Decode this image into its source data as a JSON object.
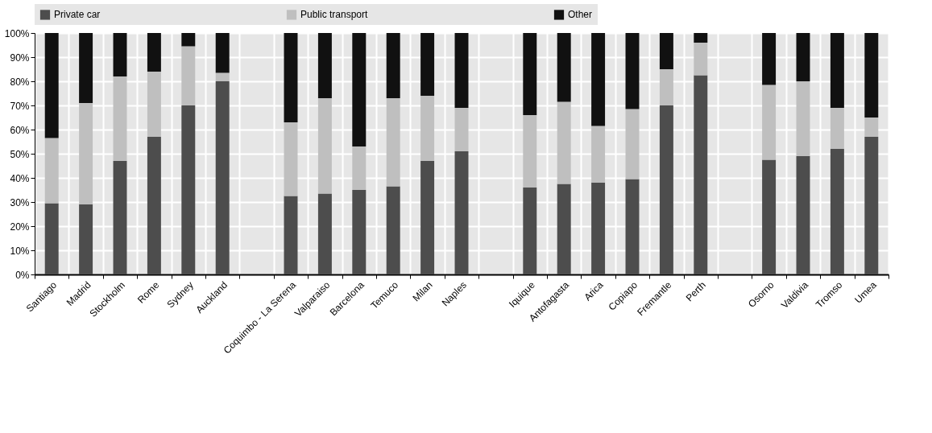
{
  "chart_data": {
    "type": "bar",
    "stacked": true,
    "categories": [
      "Santiago",
      "Madrid",
      "Stockholm",
      "Rome",
      "Sydney",
      "Auckland",
      null,
      "Coquimbo - La Serena",
      "Valparaiso",
      "Barcelona",
      "Temuco",
      "Milan",
      "Naples",
      null,
      "Iquique",
      "Antofagasta",
      "Arica",
      "Copiapo",
      "Fremantle",
      "Perth",
      null,
      "Osorno",
      "Valdivia",
      "Tromso",
      "Umea"
    ],
    "series": [
      {
        "name": "Private car",
        "color": "#4d4d4d",
        "values": [
          29.5,
          29,
          47,
          57,
          70,
          80,
          null,
          32.5,
          33.5,
          35,
          36.5,
          47,
          51,
          null,
          36,
          37.5,
          38,
          39.5,
          70,
          82.5,
          null,
          47.5,
          49,
          52,
          57
        ]
      },
      {
        "name": "Public transport",
        "color": "#bfbfbf",
        "values": [
          27,
          42,
          35,
          27,
          24.5,
          3.5,
          null,
          30.5,
          39.5,
          18,
          36.5,
          27,
          18,
          null,
          30,
          34,
          23.5,
          29,
          15,
          13.5,
          null,
          31,
          31,
          17,
          8
        ]
      },
      {
        "name": "Other",
        "color": "#111111",
        "values": [
          43.5,
          29,
          18,
          16,
          5.5,
          16.5,
          null,
          37,
          27,
          47,
          27,
          26,
          31,
          null,
          34,
          28.5,
          38.5,
          31.5,
          15,
          4,
          null,
          21.5,
          20,
          31,
          35
        ]
      }
    ],
    "ylim": [
      0,
      100
    ],
    "yticks": [
      {
        "value": 0,
        "label": "0%"
      },
      {
        "value": 10,
        "label": "10%"
      },
      {
        "value": 20,
        "label": "20%"
      },
      {
        "value": 30,
        "label": "30%"
      },
      {
        "value": 40,
        "label": "40%"
      },
      {
        "value": 50,
        "label": "50%"
      },
      {
        "value": 60,
        "label": "60%"
      },
      {
        "value": 70,
        "label": "70%"
      },
      {
        "value": 80,
        "label": "80%"
      },
      {
        "value": 90,
        "label": "90%"
      },
      {
        "value": 100,
        "label": "100%"
      }
    ],
    "grid": true,
    "legend": "top"
  }
}
